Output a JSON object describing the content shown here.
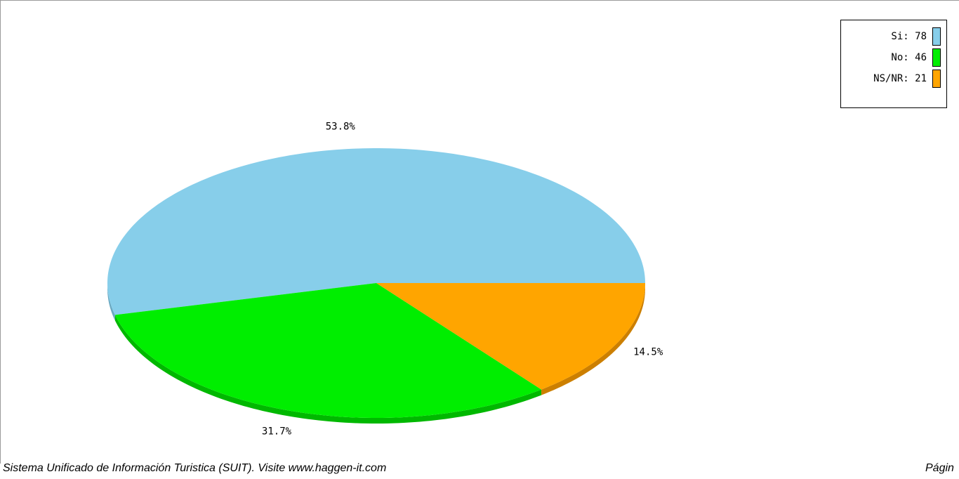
{
  "chart_data": {
    "type": "pie",
    "style": "3d",
    "categories": [
      "Si",
      "No",
      "NS/NR"
    ],
    "values": [
      78,
      46,
      21
    ],
    "percent_labels": [
      "53.8%",
      "31.7%",
      "14.5%"
    ],
    "colors": [
      "#87ceea",
      "#00ee00",
      "#ffa500"
    ],
    "shadow_colors": [
      "#6aa9c2",
      "#00b800",
      "#cc7f00"
    ],
    "legend": {
      "placement": "top-right",
      "entries": [
        {
          "label": "Si: 78",
          "color": "#87ceea"
        },
        {
          "label": "No: 46",
          "color": "#00ee00"
        },
        {
          "label": "NS/NR: 21",
          "color": "#ffa500"
        }
      ]
    }
  },
  "footer": {
    "text": "Sistema Unificado de Información Turistica (SUIT).  Visite www.haggen-it.com",
    "page_label": "Págin"
  }
}
